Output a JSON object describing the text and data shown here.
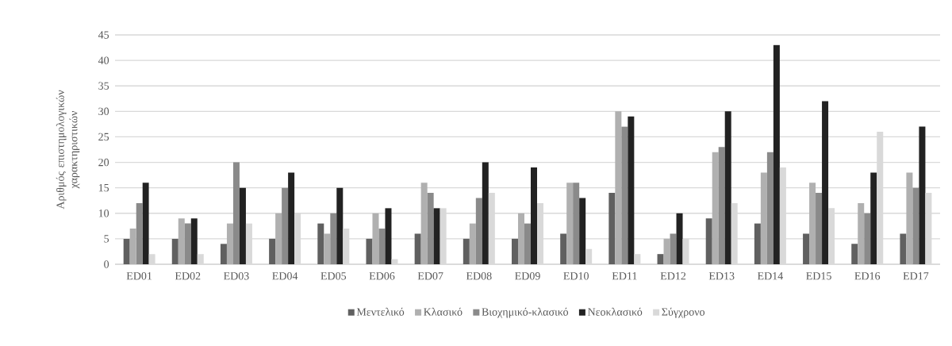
{
  "chart_data": {
    "type": "bar",
    "ylabel": "Αριθμός επιστημολογικών χαρακτηριστικών",
    "categories": [
      "ED01",
      "ED02",
      "ED03",
      "ED04",
      "ED05",
      "ED06",
      "ED07",
      "ED08",
      "ED09",
      "ED10",
      "ED11",
      "ED12",
      "ED13",
      "ED14",
      "ED15",
      "ED16",
      "ED17"
    ],
    "series": [
      {
        "name": "Μεντελικό",
        "color": "#606060",
        "values": [
          5,
          5,
          4,
          5,
          8,
          5,
          6,
          5,
          5,
          6,
          14,
          2,
          9,
          8,
          6,
          4,
          6
        ]
      },
      {
        "name": "Κλασικό",
        "color": "#b0b0b0",
        "values": [
          7,
          9,
          8,
          10,
          6,
          10,
          16,
          8,
          10,
          16,
          30,
          5,
          22,
          18,
          16,
          12,
          18
        ]
      },
      {
        "name": "Βιοχημικό-κλασικό",
        "color": "#8a8a8a",
        "values": [
          12,
          8,
          20,
          15,
          10,
          7,
          14,
          13,
          8,
          16,
          27,
          6,
          23,
          22,
          14,
          10,
          15
        ]
      },
      {
        "name": "Νεοκλασικό",
        "color": "#222222",
        "values": [
          16,
          9,
          15,
          18,
          15,
          11,
          11,
          20,
          19,
          13,
          29,
          10,
          30,
          43,
          32,
          18,
          27
        ]
      },
      {
        "name": "Σύγχρονο",
        "color": "#d9d9d9",
        "values": [
          2,
          2,
          8,
          10,
          7,
          1,
          11,
          14,
          12,
          3,
          2,
          5,
          12,
          19,
          11,
          26,
          14
        ]
      }
    ],
    "ylim": [
      0,
      45
    ],
    "yticks": [
      0,
      5,
      10,
      15,
      20,
      25,
      30,
      35,
      40,
      45
    ],
    "grid": "y",
    "legend": "bottom"
  }
}
